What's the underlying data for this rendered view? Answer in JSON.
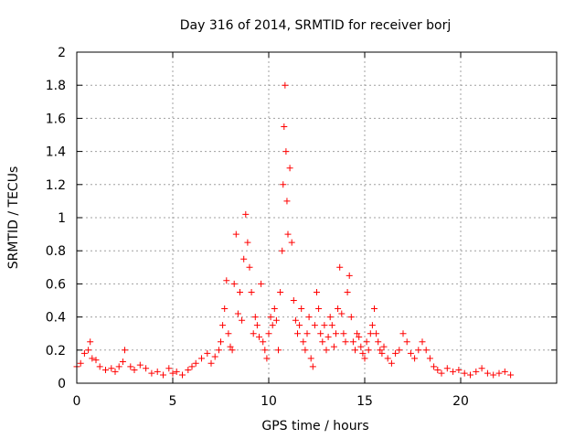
{
  "chart_data": {
    "type": "scatter",
    "title": "Day 316 of 2014, SRMTID for receiver borj",
    "xlabel": "GPS time / hours",
    "ylabel": "SRMTID / TECUs",
    "xlim": [
      0,
      25
    ],
    "ylim": [
      0,
      2
    ],
    "xticks": [
      0,
      5,
      10,
      15,
      20
    ],
    "yticks": [
      0,
      0.2,
      0.4,
      0.6,
      0.8,
      1,
      1.2,
      1.4,
      1.6,
      1.8,
      2
    ],
    "xtick_labels": [
      "0",
      "5",
      "10",
      "15",
      "20"
    ],
    "ytick_labels": [
      "0",
      "0.2",
      "0.4",
      "0.6",
      "0.8",
      "1",
      "1.2",
      "1.4",
      "1.6",
      "1.8",
      "2"
    ],
    "grid": true,
    "marker": "+",
    "color": "#ff0000",
    "series": [
      {
        "name": "borj",
        "x": [
          0.0,
          0.2,
          0.4,
          0.6,
          0.7,
          0.8,
          1.0,
          1.2,
          1.5,
          1.8,
          2.0,
          2.2,
          2.4,
          2.5,
          2.8,
          3.0,
          3.3,
          3.6,
          3.9,
          4.2,
          4.5,
          4.8,
          5.0,
          5.2,
          5.5,
          5.8,
          6.0,
          6.2,
          6.5,
          6.8,
          7.0,
          7.2,
          7.4,
          7.5,
          7.6,
          7.7,
          7.8,
          7.9,
          8.0,
          8.1,
          8.2,
          8.3,
          8.4,
          8.5,
          8.6,
          8.7,
          8.8,
          8.9,
          9.0,
          9.1,
          9.2,
          9.3,
          9.4,
          9.5,
          9.6,
          9.7,
          9.8,
          9.9,
          10.0,
          10.1,
          10.2,
          10.3,
          10.4,
          10.5,
          10.6,
          10.7,
          10.75,
          10.8,
          10.85,
          10.9,
          10.95,
          11.0,
          11.1,
          11.2,
          11.3,
          11.4,
          11.5,
          11.6,
          11.7,
          11.8,
          11.9,
          12.0,
          12.1,
          12.2,
          12.3,
          12.4,
          12.5,
          12.6,
          12.7,
          12.8,
          12.9,
          13.0,
          13.1,
          13.2,
          13.3,
          13.4,
          13.5,
          13.6,
          13.7,
          13.8,
          13.9,
          14.0,
          14.1,
          14.2,
          14.3,
          14.4,
          14.5,
          14.6,
          14.7,
          14.8,
          14.9,
          15.0,
          15.1,
          15.2,
          15.3,
          15.4,
          15.5,
          15.6,
          15.7,
          15.8,
          15.9,
          16.0,
          16.2,
          16.4,
          16.6,
          16.8,
          17.0,
          17.2,
          17.4,
          17.6,
          17.8,
          18.0,
          18.2,
          18.4,
          18.6,
          18.8,
          19.0,
          19.3,
          19.6,
          19.9,
          20.2,
          20.5,
          20.8,
          21.1,
          21.4,
          21.7,
          22.0,
          22.3,
          22.6
        ],
        "y": [
          0.1,
          0.12,
          0.18,
          0.2,
          0.25,
          0.15,
          0.14,
          0.1,
          0.08,
          0.09,
          0.07,
          0.1,
          0.13,
          0.2,
          0.1,
          0.08,
          0.11,
          0.09,
          0.06,
          0.07,
          0.05,
          0.09,
          0.06,
          0.07,
          0.05,
          0.08,
          0.1,
          0.12,
          0.15,
          0.18,
          0.12,
          0.16,
          0.2,
          0.25,
          0.35,
          0.45,
          0.62,
          0.3,
          0.22,
          0.2,
          0.6,
          0.9,
          0.42,
          0.55,
          0.38,
          0.75,
          1.02,
          0.85,
          0.7,
          0.55,
          0.3,
          0.4,
          0.35,
          0.28,
          0.6,
          0.25,
          0.2,
          0.15,
          0.3,
          0.4,
          0.35,
          0.45,
          0.38,
          0.2,
          0.55,
          0.8,
          1.2,
          1.55,
          1.8,
          1.4,
          1.1,
          0.9,
          1.3,
          0.85,
          0.5,
          0.38,
          0.3,
          0.35,
          0.45,
          0.25,
          0.2,
          0.3,
          0.4,
          0.15,
          0.1,
          0.35,
          0.55,
          0.45,
          0.3,
          0.25,
          0.35,
          0.2,
          0.28,
          0.4,
          0.35,
          0.22,
          0.3,
          0.45,
          0.7,
          0.42,
          0.3,
          0.25,
          0.55,
          0.65,
          0.4,
          0.25,
          0.2,
          0.3,
          0.28,
          0.22,
          0.18,
          0.15,
          0.25,
          0.2,
          0.3,
          0.35,
          0.45,
          0.3,
          0.25,
          0.2,
          0.18,
          0.22,
          0.15,
          0.12,
          0.18,
          0.2,
          0.3,
          0.25,
          0.18,
          0.15,
          0.2,
          0.25,
          0.2,
          0.15,
          0.1,
          0.08,
          0.06,
          0.09,
          0.07,
          0.08,
          0.06,
          0.05,
          0.07,
          0.09,
          0.06,
          0.05,
          0.06,
          0.07,
          0.05
        ]
      }
    ]
  }
}
